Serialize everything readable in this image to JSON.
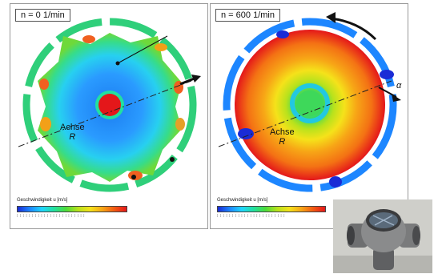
{
  "left_panel": {
    "speed_label": "n = 0 1/min",
    "axis_label_line1": "Achse",
    "axis_label_line2": "R",
    "colorbar_title": "Geschwindigkeit u [m/s]"
  },
  "right_panel": {
    "speed_label": "n = 600 1/min",
    "axis_label_line1": "Achse",
    "axis_label_line2": "R",
    "colorbar_title": "Geschwindigkeit u [m/s]",
    "angle_label": "α"
  },
  "colors": {
    "low": "#1a2bd6",
    "mid": "#4cdc3a",
    "high": "#e4171a"
  },
  "photo": {
    "icon": "cross-fitting-photo"
  }
}
